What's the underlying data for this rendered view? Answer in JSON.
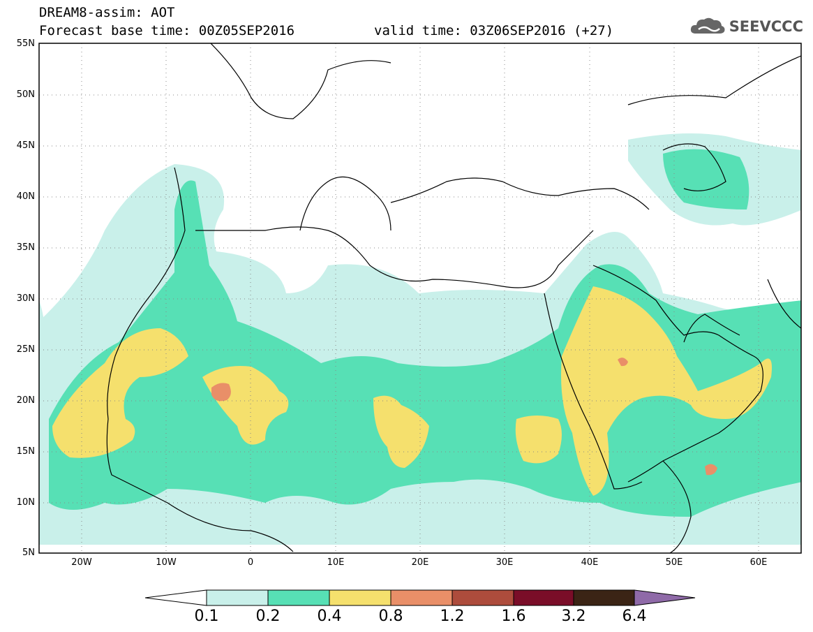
{
  "header": {
    "title_line1": "DREAM8-assim: AOT",
    "title_line2": "Forecast base time: 00Z05SEP2016",
    "valid_time": "valid time: 03Z06SEP2016 (+27)",
    "logo_text": "SEEVCCC"
  },
  "map": {
    "lat_labels": [
      "55N",
      "50N",
      "45N",
      "40N",
      "35N",
      "30N",
      "25N",
      "20N",
      "15N",
      "10N",
      "5N"
    ],
    "lon_labels": [
      "20W",
      "10W",
      "0",
      "10E",
      "20E",
      "30E",
      "40E",
      "50E",
      "60E"
    ],
    "lon_range": [
      -25,
      65
    ],
    "lat_range": [
      5,
      55
    ],
    "grid": "dotted"
  },
  "colorbar": {
    "labels": [
      "0.1",
      "0.2",
      "0.4",
      "0.8",
      "1.2",
      "1.6",
      "3.2",
      "6.4"
    ],
    "colors": [
      "#c9f0ea",
      "#57e0b5",
      "#f5e06d",
      "#e98f68",
      "#ad4c3c",
      "#7a0d28",
      "#3b2415",
      "#8f6aa8"
    ]
  },
  "colors": {
    "band_0_1": "#c9f0ea",
    "band_0_2": "#57e0b5",
    "band_0_4": "#f5e06d",
    "band_0_8": "#e98f68"
  }
}
